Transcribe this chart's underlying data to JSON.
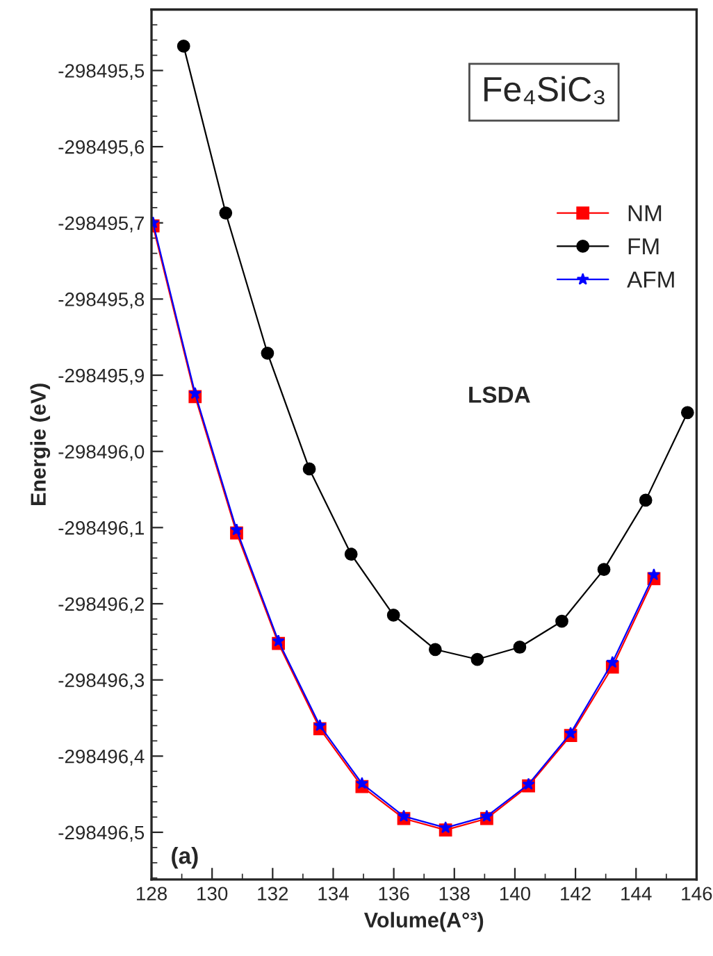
{
  "chart_data": {
    "type": "line",
    "xlabel": "Volume(A°³)",
    "ylabel": "Energie (eV)",
    "annotations": [
      "Fe₄SiC₃",
      "LSDA",
      "(a)"
    ],
    "xlim": [
      128,
      146
    ],
    "xticks": [
      128,
      130,
      132,
      134,
      136,
      138,
      140,
      142,
      144,
      146
    ],
    "ylim": [
      -298496.562,
      -298495.42
    ],
    "yticks": [
      {
        "value": -298495.5,
        "label": "-298495,5"
      },
      {
        "value": -298495.6,
        "label": "-298495,6"
      },
      {
        "value": -298495.7,
        "label": "-298495,7"
      },
      {
        "value": -298495.8,
        "label": "-298495,8"
      },
      {
        "value": -298495.9,
        "label": "-298495,9"
      },
      {
        "value": -298496.0,
        "label": "-298496,0"
      },
      {
        "value": -298496.1,
        "label": "-298496,1"
      },
      {
        "value": -298496.2,
        "label": "-298496,2"
      },
      {
        "value": -298496.3,
        "label": "-298496,3"
      },
      {
        "value": -298496.4,
        "label": "-298496,4"
      },
      {
        "value": -298496.5,
        "label": "-298496,5"
      }
    ],
    "grid": false,
    "legend": "top right",
    "line_style": "solid",
    "series": [
      {
        "name": "NM",
        "color": "#ff0000",
        "marker": "square",
        "x": [
          128.05,
          129.44,
          130.81,
          132.19,
          133.56,
          134.95,
          136.33,
          137.71,
          139.07,
          140.45,
          141.84,
          143.22,
          144.59
        ],
        "values": [
          -298495.704,
          -298495.928,
          -298496.107,
          -298496.252,
          -298496.364,
          -298496.44,
          -298496.482,
          -298496.497,
          -298496.482,
          -298496.439,
          -298496.373,
          -298496.283,
          -298496.167
        ]
      },
      {
        "name": "FM",
        "color": "#000000",
        "marker": "circle",
        "x": [
          129.06,
          130.45,
          131.83,
          133.21,
          134.59,
          135.99,
          137.37,
          138.76,
          140.16,
          141.55,
          142.94,
          144.32,
          145.7
        ],
        "values": [
          -298495.468,
          -298495.687,
          -298495.871,
          -298496.023,
          -298496.135,
          -298496.215,
          -298496.26,
          -298496.273,
          -298496.257,
          -298496.223,
          -298496.155,
          -298496.064,
          -298495.949
        ]
      },
      {
        "name": "AFM",
        "color": "#0000ff",
        "marker": "star",
        "x": [
          128.05,
          129.44,
          130.81,
          132.19,
          133.56,
          134.95,
          136.33,
          137.71,
          139.07,
          140.45,
          141.84,
          143.22,
          144.59
        ],
        "values": [
          -298495.7,
          -298495.924,
          -298496.103,
          -298496.249,
          -298496.36,
          -298496.436,
          -298496.479,
          -298496.494,
          -298496.479,
          -298496.437,
          -298496.37,
          -298496.277,
          -298496.162
        ]
      }
    ]
  }
}
